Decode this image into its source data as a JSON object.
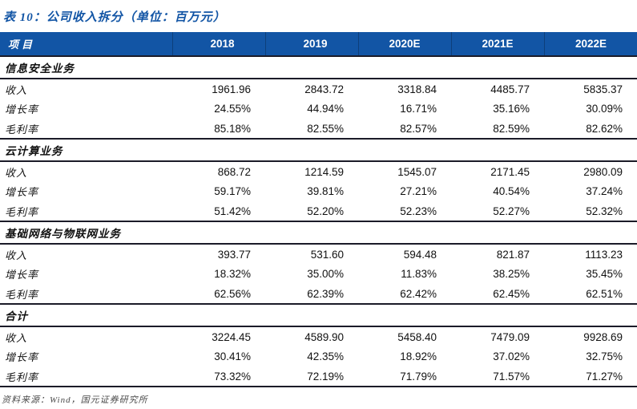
{
  "title": "表 10：公司收入拆分（单位：百万元）",
  "colors": {
    "header_bg": "#1255A5",
    "title_color": "#1255A5",
    "rule_color": "#1b1b28",
    "source_color": "#4a4a4a"
  },
  "table": {
    "header": {
      "item_label": "项目",
      "years": [
        "2018",
        "2019",
        "2020E",
        "2021E",
        "2022E"
      ]
    },
    "sections": [
      {
        "name": "信息安全业务",
        "rows": [
          {
            "label": "收入",
            "values": [
              "1961.96",
              "2843.72",
              "3318.84",
              "4485.77",
              "5835.37"
            ]
          },
          {
            "label": "增长率",
            "values": [
              "24.55%",
              "44.94%",
              "16.71%",
              "35.16%",
              "30.09%"
            ]
          },
          {
            "label": "毛利率",
            "values": [
              "85.18%",
              "82.55%",
              "82.57%",
              "82.59%",
              "82.62%"
            ]
          }
        ]
      },
      {
        "name": "云计算业务",
        "rows": [
          {
            "label": "收入",
            "values": [
              "868.72",
              "1214.59",
              "1545.07",
              "2171.45",
              "2980.09"
            ]
          },
          {
            "label": "增长率",
            "values": [
              "59.17%",
              "39.81%",
              "27.21%",
              "40.54%",
              "37.24%"
            ]
          },
          {
            "label": "毛利率",
            "values": [
              "51.42%",
              "52.20%",
              "52.23%",
              "52.27%",
              "52.32%"
            ]
          }
        ]
      },
      {
        "name": "基础网络与物联网业务",
        "rows": [
          {
            "label": "收入",
            "values": [
              "393.77",
              "531.60",
              "594.48",
              "821.87",
              "1113.23"
            ]
          },
          {
            "label": "增长率",
            "values": [
              "18.32%",
              "35.00%",
              "11.83%",
              "38.25%",
              "35.45%"
            ]
          },
          {
            "label": "毛利率",
            "values": [
              "62.56%",
              "62.39%",
              "62.42%",
              "62.45%",
              "62.51%"
            ]
          }
        ]
      },
      {
        "name": "合计",
        "rows": [
          {
            "label": "收入",
            "values": [
              "3224.45",
              "4589.90",
              "5458.40",
              "7479.09",
              "9928.69"
            ]
          },
          {
            "label": "增长率",
            "values": [
              "30.41%",
              "42.35%",
              "18.92%",
              "37.02%",
              "32.75%"
            ]
          },
          {
            "label": "毛利率",
            "values": [
              "73.32%",
              "72.19%",
              "71.79%",
              "71.57%",
              "71.27%"
            ]
          }
        ]
      }
    ]
  },
  "footer": {
    "source": "资料来源：Wind，国元证券研究所"
  }
}
